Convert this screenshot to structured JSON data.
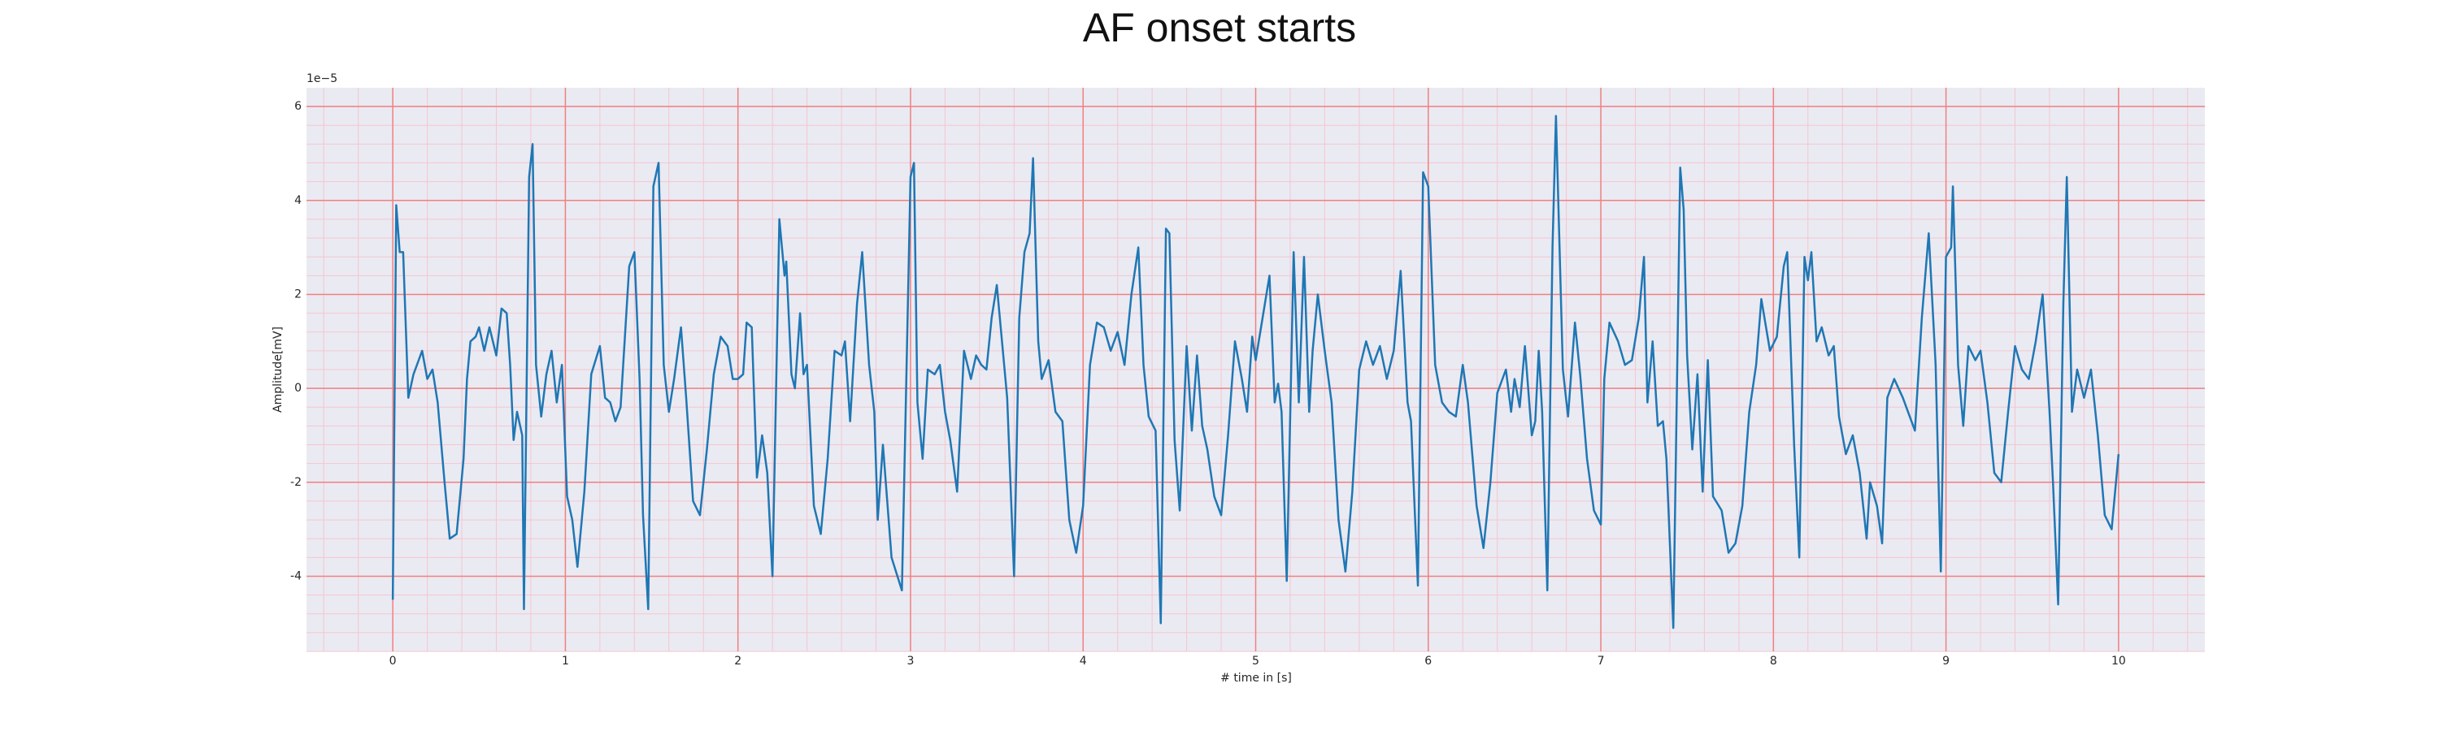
{
  "chart_data": {
    "type": "line",
    "title": "AF onset starts",
    "x_label": "# time in [s]",
    "y_label": "Amplitude[mV]",
    "y_offset_label": "1e−5",
    "xlim": [
      -0.5,
      10.5
    ],
    "ylim": [
      -5.6,
      6.4
    ],
    "xticks": [
      0,
      1,
      2,
      3,
      4,
      5,
      6,
      7,
      8,
      9,
      10
    ],
    "yticks": [
      -4,
      -2,
      0,
      2,
      4,
      6
    ],
    "grid": true,
    "minor_grid": true,
    "background": "#eaeaf2",
    "grid_color": "#f08080",
    "minor_grid_color": "#f5c6cf",
    "x": [
      0,
      0.02,
      0.04,
      0.06,
      0.09,
      0.12,
      0.17,
      0.2,
      0.23,
      0.26,
      0.3,
      0.33,
      0.37,
      0.41,
      0.43,
      0.45,
      0.48,
      0.5,
      0.53,
      0.56,
      0.6,
      0.63,
      0.66,
      0.68,
      0.7,
      0.72,
      0.75,
      0.76,
      0.79,
      0.81,
      0.83,
      0.86,
      0.89,
      0.92,
      0.95,
      0.98,
      1.01,
      1.04,
      1.07,
      1.11,
      1.15,
      1.2,
      1.23,
      1.26,
      1.29,
      1.32,
      1.37,
      1.4,
      1.43,
      1.45,
      1.48,
      1.51,
      1.54,
      1.57,
      1.6,
      1.63,
      1.67,
      1.7,
      1.74,
      1.78,
      1.82,
      1.86,
      1.9,
      1.94,
      1.97,
      2.0,
      2.03,
      2.05,
      2.08,
      2.11,
      2.14,
      2.17,
      2.2,
      2.24,
      2.27,
      2.28,
      2.31,
      2.33,
      2.36,
      2.38,
      2.4,
      2.44,
      2.48,
      2.52,
      2.56,
      2.6,
      2.62,
      2.65,
      2.69,
      2.72,
      2.76,
      2.79,
      2.81,
      2.84,
      2.89,
      2.95,
      2.97,
      3.0,
      3.02,
      3.04,
      3.07,
      3.1,
      3.14,
      3.17,
      3.2,
      3.23,
      3.27,
      3.31,
      3.35,
      3.38,
      3.41,
      3.44,
      3.47,
      3.5,
      3.53,
      3.56,
      3.6,
      3.63,
      3.66,
      3.69,
      3.71,
      3.74,
      3.76,
      3.8,
      3.84,
      3.88,
      3.92,
      3.96,
      4.0,
      4.04,
      4.08,
      4.12,
      4.16,
      4.2,
      4.24,
      4.28,
      4.32,
      4.35,
      4.38,
      4.42,
      4.45,
      4.48,
      4.5,
      4.53,
      4.56,
      4.6,
      4.63,
      4.66,
      4.69,
      4.72,
      4.76,
      4.8,
      4.84,
      4.88,
      4.92,
      4.95,
      4.98,
      5.0,
      5.04,
      5.08,
      5.11,
      5.13,
      5.15,
      5.18,
      5.22,
      5.25,
      5.28,
      5.31,
      5.33,
      5.36,
      5.4,
      5.44,
      5.48,
      5.52,
      5.56,
      5.6,
      5.64,
      5.68,
      5.72,
      5.76,
      5.8,
      5.84,
      5.88,
      5.9,
      5.94,
      5.97,
      6.0,
      6.04,
      6.08,
      6.12,
      6.16,
      6.2,
      6.23,
      6.28,
      6.32,
      6.36,
      6.4,
      6.45,
      6.48,
      6.5,
      6.53,
      6.56,
      6.6,
      6.62,
      6.64,
      6.66,
      6.69,
      6.72,
      6.74,
      6.78,
      6.81,
      6.85,
      6.88,
      6.92,
      6.96,
      7.0,
      7.02,
      7.05,
      7.1,
      7.14,
      7.18,
      7.22,
      7.25,
      7.27,
      7.3,
      7.33,
      7.36,
      7.38,
      7.42,
      7.46,
      7.48,
      7.5,
      7.53,
      7.56,
      7.59,
      7.62,
      7.65,
      7.7,
      7.74,
      7.78,
      7.82,
      7.86,
      7.9,
      7.93,
      7.98,
      8.02,
      8.06,
      8.08,
      8.12,
      8.15,
      8.18,
      8.2,
      8.22,
      8.25,
      8.28,
      8.32,
      8.35,
      8.38,
      8.42,
      8.46,
      8.5,
      8.54,
      8.56,
      8.6,
      8.63,
      8.66,
      8.7,
      8.75,
      8.78,
      8.82,
      8.86,
      8.9,
      8.94,
      8.97,
      9.0,
      9.03,
      9.04,
      9.07,
      9.1,
      9.13,
      9.17,
      9.2,
      9.24,
      9.28,
      9.32,
      9.36,
      9.4,
      9.44,
      9.48,
      9.52,
      9.56,
      9.6,
      9.62,
      9.65,
      9.68,
      9.7,
      9.73,
      9.76,
      9.8,
      9.84,
      9.88,
      9.92,
      9.96,
      10.0
    ],
    "series": [
      {
        "color": "#1f77b4",
        "values": [
          -4.5,
          3.9,
          2.9,
          2.9,
          -0.2,
          0.3,
          0.8,
          0.2,
          0.4,
          -0.3,
          -2.0,
          -3.2,
          -3.1,
          -1.5,
          0.2,
          1.0,
          1.1,
          1.3,
          0.8,
          1.3,
          0.7,
          1.7,
          1.6,
          0.5,
          -1.1,
          -0.5,
          -1.0,
          -4.7,
          4.5,
          5.2,
          0.5,
          -0.6,
          0.3,
          0.8,
          -0.3,
          0.5,
          -2.3,
          -2.8,
          -3.8,
          -2.2,
          0.3,
          0.9,
          -0.2,
          -0.3,
          -0.7,
          -0.4,
          2.6,
          2.9,
          0.2,
          -2.7,
          -4.7,
          4.3,
          4.8,
          0.5,
          -0.5,
          0.2,
          1.3,
          -0.2,
          -2.4,
          -2.7,
          -1.3,
          0.3,
          1.1,
          0.9,
          0.2,
          0.2,
          0.3,
          1.4,
          1.3,
          -1.9,
          -1.0,
          -1.8,
          -4.0,
          3.6,
          2.4,
          2.7,
          0.3,
          0.0,
          1.6,
          0.3,
          0.5,
          -2.5,
          -3.1,
          -1.5,
          0.8,
          0.7,
          1.0,
          -0.7,
          1.8,
          2.9,
          0.5,
          -0.5,
          -2.8,
          -1.2,
          -3.6,
          -4.3,
          -0.8,
          4.5,
          4.8,
          -0.3,
          -1.5,
          0.4,
          0.3,
          0.5,
          -0.5,
          -1.1,
          -2.2,
          0.8,
          0.2,
          0.7,
          0.5,
          0.4,
          1.5,
          2.2,
          1.0,
          -0.2,
          -4.0,
          1.5,
          2.9,
          3.3,
          4.9,
          1.0,
          0.2,
          0.6,
          -0.5,
          -0.7,
          -2.8,
          -3.5,
          -2.5,
          0.5,
          1.4,
          1.3,
          0.8,
          1.2,
          0.5,
          2.0,
          3.0,
          0.5,
          -0.6,
          -0.9,
          -5.0,
          3.4,
          3.3,
          -1.1,
          -2.6,
          0.9,
          -0.9,
          0.7,
          -0.8,
          -1.3,
          -2.3,
          -2.7,
          -1.0,
          1.0,
          0.2,
          -0.5,
          1.1,
          0.6,
          1.5,
          2.4,
          -0.3,
          0.1,
          -0.5,
          -4.1,
          2.9,
          -0.3,
          2.8,
          -0.5,
          0.8,
          2.0,
          0.8,
          -0.3,
          -2.8,
          -3.9,
          -2.2,
          0.4,
          1.0,
          0.5,
          0.9,
          0.2,
          0.8,
          2.5,
          -0.3,
          -0.7,
          -4.2,
          4.6,
          4.3,
          0.5,
          -0.3,
          -0.5,
          -0.6,
          0.5,
          -0.3,
          -2.5,
          -3.4,
          -2.0,
          -0.1,
          0.4,
          -0.5,
          0.2,
          -0.4,
          0.9,
          -1.0,
          -0.7,
          0.8,
          -0.5,
          -4.3,
          3.0,
          5.8,
          0.4,
          -0.6,
          1.4,
          0.3,
          -1.5,
          -2.6,
          -2.9,
          0.2,
          1.4,
          1.0,
          0.5,
          0.6,
          1.5,
          2.8,
          -0.3,
          1.0,
          -0.8,
          -0.7,
          -1.5,
          -5.1,
          4.7,
          3.8,
          0.7,
          -1.3,
          0.3,
          -2.2,
          0.6,
          -2.3,
          -2.6,
          -3.5,
          -3.3,
          -2.5,
          -0.5,
          0.5,
          1.9,
          0.8,
          1.1,
          2.6,
          2.9,
          -1.2,
          -3.6,
          2.8,
          2.3,
          2.9,
          1.0,
          1.3,
          0.7,
          0.9,
          -0.6,
          -1.4,
          -1.0,
          -1.8,
          -3.2,
          -2.0,
          -2.5,
          -3.3,
          -0.2,
          0.2,
          -0.2,
          -0.5,
          -0.9,
          1.5,
          3.3,
          0.5,
          -3.9,
          2.8,
          3.0,
          4.3,
          0.5,
          -0.8,
          0.9,
          0.6,
          0.8,
          -0.3,
          -1.8,
          -2.0,
          -0.5,
          0.9,
          0.4,
          0.2,
          1.0,
          2.0,
          -0.5,
          -2.0,
          -4.6,
          1.8,
          4.5,
          -0.5,
          0.4,
          -0.2,
          0.4,
          -1.0,
          -2.7,
          -3.0,
          -1.4
        ]
      }
    ]
  }
}
